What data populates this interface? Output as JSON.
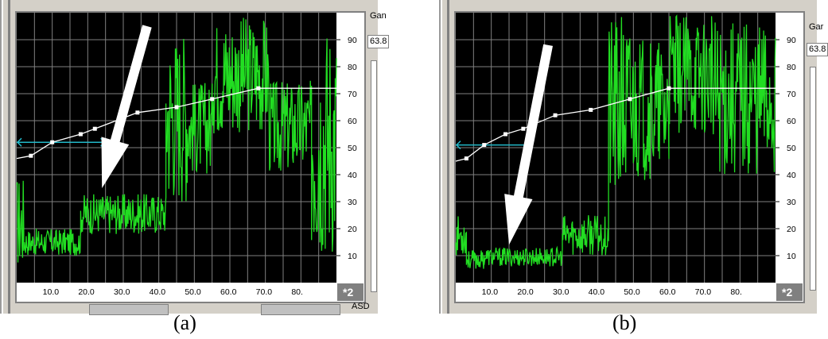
{
  "panels": [
    {
      "id": "a",
      "caption": "(a)",
      "side_label": "Gan",
      "side_value": "63.8",
      "bottom_label": "ASD",
      "multiplier": "*2",
      "x_ticks": [
        "10.0",
        "20.0",
        "30.0",
        "40.0",
        "50.0",
        "60.0",
        "70.0",
        "80."
      ],
      "y_ticks": [
        "10",
        "20",
        "30",
        "40",
        "50",
        "60",
        "70",
        "80",
        "90"
      ],
      "curve_points": [
        [
          0,
          46
        ],
        [
          4,
          47
        ],
        [
          10,
          52
        ],
        [
          18,
          55
        ],
        [
          22,
          57
        ],
        [
          34,
          63
        ],
        [
          45,
          65
        ],
        [
          55,
          68
        ],
        [
          68,
          72
        ],
        [
          90,
          72
        ]
      ],
      "marker_x": [
        4,
        10,
        18,
        22,
        34,
        45,
        55,
        68
      ],
      "cyan_segment": {
        "x": [
          0,
          25
        ],
        "y": 52
      },
      "signal_levels": [
        {
          "x": [
            0,
            2
          ],
          "lo": 5,
          "hi": 40
        },
        {
          "x": [
            2,
            18
          ],
          "lo": 10,
          "hi": 20
        },
        {
          "x": [
            18,
            42
          ],
          "lo": 18,
          "hi": 33
        },
        {
          "x": [
            42,
            48
          ],
          "lo": 30,
          "hi": 95
        },
        {
          "x": [
            48,
            55
          ],
          "lo": 40,
          "hi": 75
        },
        {
          "x": [
            55,
            71
          ],
          "lo": 55,
          "hi": 99
        },
        {
          "x": [
            71,
            83
          ],
          "lo": 40,
          "hi": 75
        },
        {
          "x": [
            83,
            90
          ],
          "lo": 10,
          "hi": 99
        }
      ],
      "arrow": {
        "from": [
          36.7,
          95
        ],
        "to": [
          24,
          35
        ]
      }
    },
    {
      "id": "b",
      "caption": "(b)",
      "side_label": "Gar",
      "side_value": "63.8",
      "bottom_label": "",
      "multiplier": "*2",
      "x_ticks": [
        "10.0",
        "20.0",
        "30.0",
        "40.0",
        "50.0",
        "60.0",
        "70.0",
        "80."
      ],
      "y_ticks": [
        "10",
        "20",
        "30",
        "40",
        "50",
        "60",
        "70",
        "80",
        "90"
      ],
      "curve_points": [
        [
          0,
          45
        ],
        [
          3,
          46
        ],
        [
          8,
          51
        ],
        [
          14,
          55
        ],
        [
          19,
          57
        ],
        [
          28,
          62
        ],
        [
          38,
          64
        ],
        [
          49,
          68
        ],
        [
          60,
          72
        ],
        [
          90,
          72
        ]
      ],
      "marker_x": [
        3,
        8,
        14,
        19,
        28,
        38,
        49,
        60
      ],
      "cyan_segment": {
        "x": [
          0,
          21
        ],
        "y": 51
      },
      "signal_levels": [
        {
          "x": [
            0,
            3
          ],
          "lo": 10,
          "hi": 25
        },
        {
          "x": [
            3,
            8
          ],
          "lo": 5,
          "hi": 12
        },
        {
          "x": [
            8,
            30
          ],
          "lo": 6,
          "hi": 13
        },
        {
          "x": [
            30,
            43
          ],
          "lo": 10,
          "hi": 25
        },
        {
          "x": [
            43,
            50
          ],
          "lo": 28,
          "hi": 99
        },
        {
          "x": [
            50,
            60
          ],
          "lo": 38,
          "hi": 90
        },
        {
          "x": [
            60,
            72
          ],
          "lo": 55,
          "hi": 99
        },
        {
          "x": [
            72,
            90
          ],
          "lo": 40,
          "hi": 99
        }
      ],
      "arrow": {
        "from": [
          26,
          88
        ],
        "to": [
          15,
          14
        ]
      }
    }
  ]
}
